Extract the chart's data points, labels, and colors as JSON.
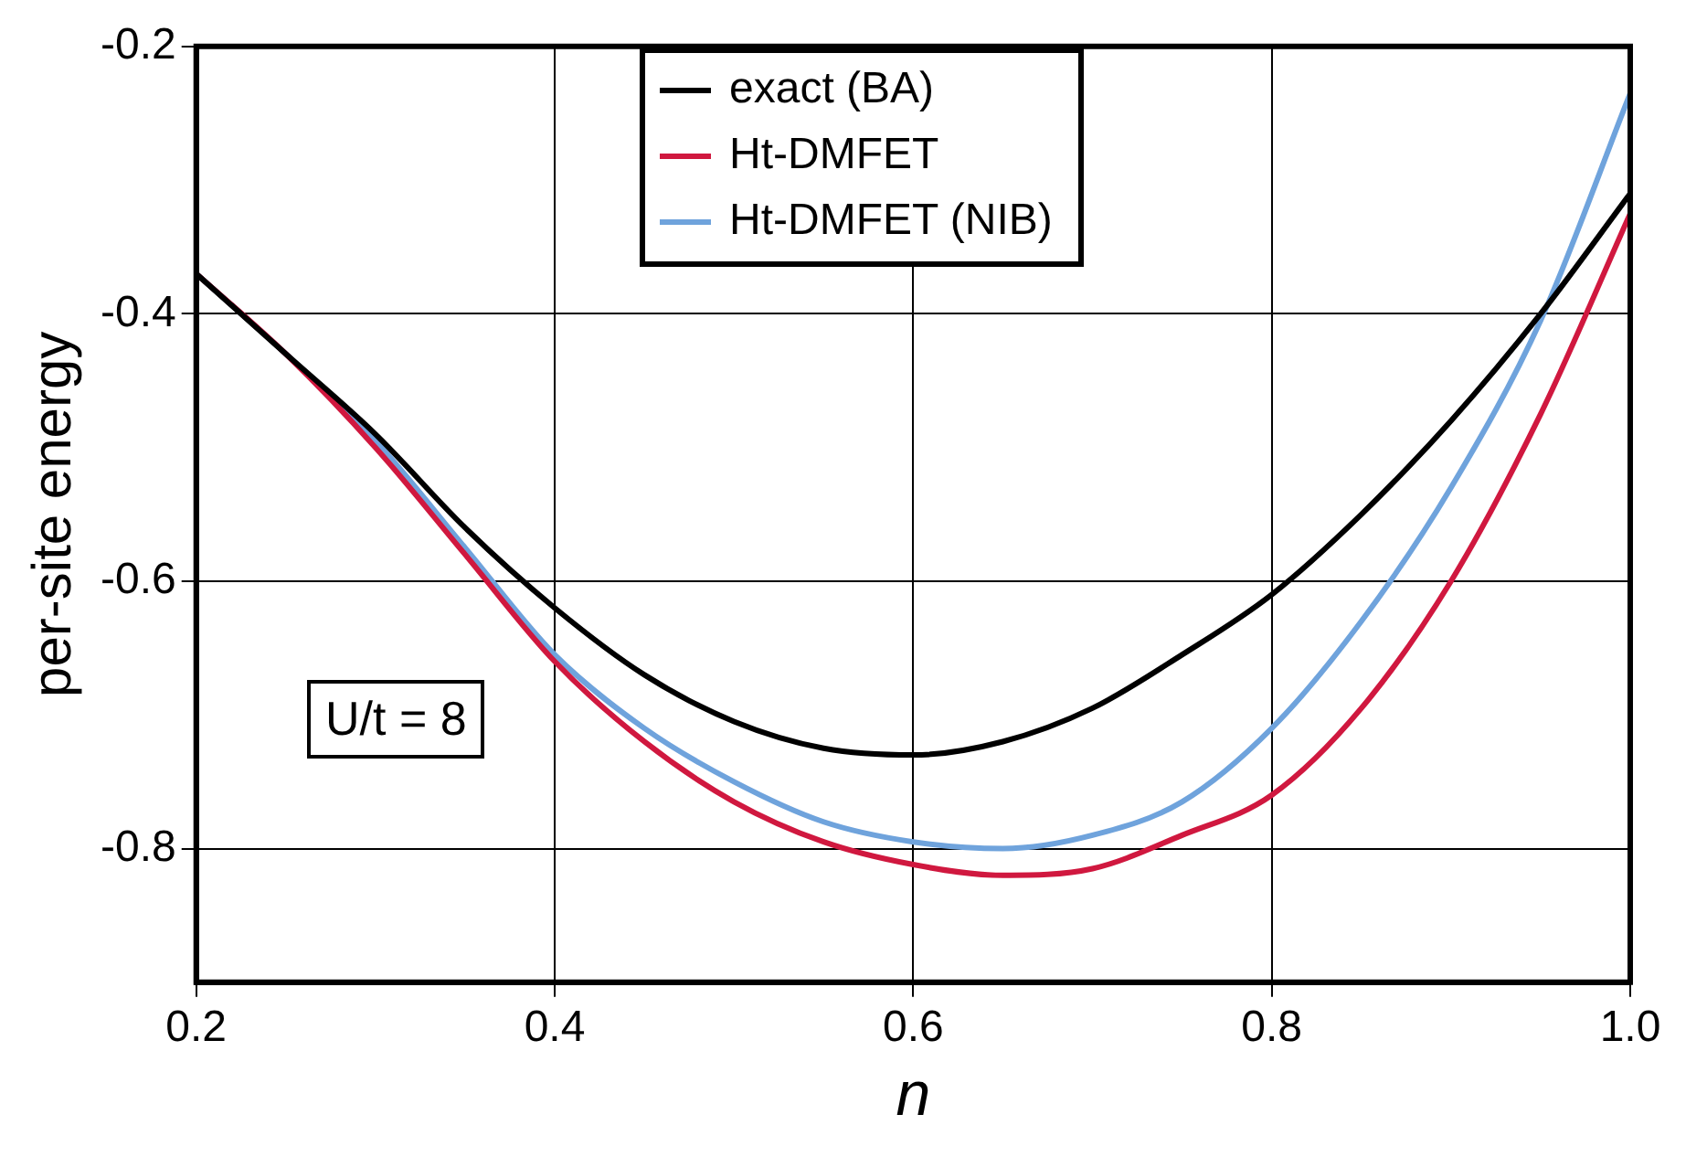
{
  "chart_data": {
    "type": "line",
    "xlabel": "n",
    "ylabel": "per-site energy",
    "xlim": [
      0.2,
      1.0
    ],
    "ylim": [
      -0.9,
      -0.2
    ],
    "xticks": [
      {
        "value": 0.2,
        "label": "0.2"
      },
      {
        "value": 0.4,
        "label": "0.4"
      },
      {
        "value": 0.6,
        "label": "0.6"
      },
      {
        "value": 0.8,
        "label": "0.8"
      },
      {
        "value": 1.0,
        "label": "1.0"
      }
    ],
    "yticks": [
      -0.8,
      -0.6,
      -0.4,
      -0.2
    ],
    "grid": true,
    "legend": "top",
    "marker": "none",
    "line_style": "solid",
    "annotations": [
      "U/t = 8"
    ],
    "x": [
      0.2,
      0.25,
      0.3,
      0.35,
      0.4,
      0.45,
      0.5,
      0.55,
      0.6,
      0.65,
      0.7,
      0.75,
      0.8,
      0.85,
      0.9,
      0.95,
      1.0
    ],
    "series": [
      {
        "name": "exact (BA)",
        "color": "#000000",
        "values": [
          -0.37,
          -0.43,
          -0.49,
          -0.56,
          -0.62,
          -0.67,
          -0.705,
          -0.725,
          -0.73,
          -0.72,
          -0.695,
          -0.655,
          -0.61,
          -0.55,
          -0.48,
          -0.4,
          -0.31
        ]
      },
      {
        "name": "Ht-DMFET",
        "color": "#d0183f",
        "values": [
          -0.37,
          -0.43,
          -0.5,
          -0.58,
          -0.66,
          -0.72,
          -0.765,
          -0.795,
          -0.812,
          -0.82,
          -0.815,
          -0.79,
          -0.76,
          -0.695,
          -0.6,
          -0.475,
          -0.325
        ]
      },
      {
        "name": "Ht-DMFET (NIB)",
        "color": "#6fa3dc",
        "values": [
          -0.37,
          -0.43,
          -0.495,
          -0.575,
          -0.655,
          -0.71,
          -0.75,
          -0.78,
          -0.795,
          -0.8,
          -0.79,
          -0.765,
          -0.71,
          -0.63,
          -0.53,
          -0.405,
          -0.235
        ]
      }
    ]
  }
}
